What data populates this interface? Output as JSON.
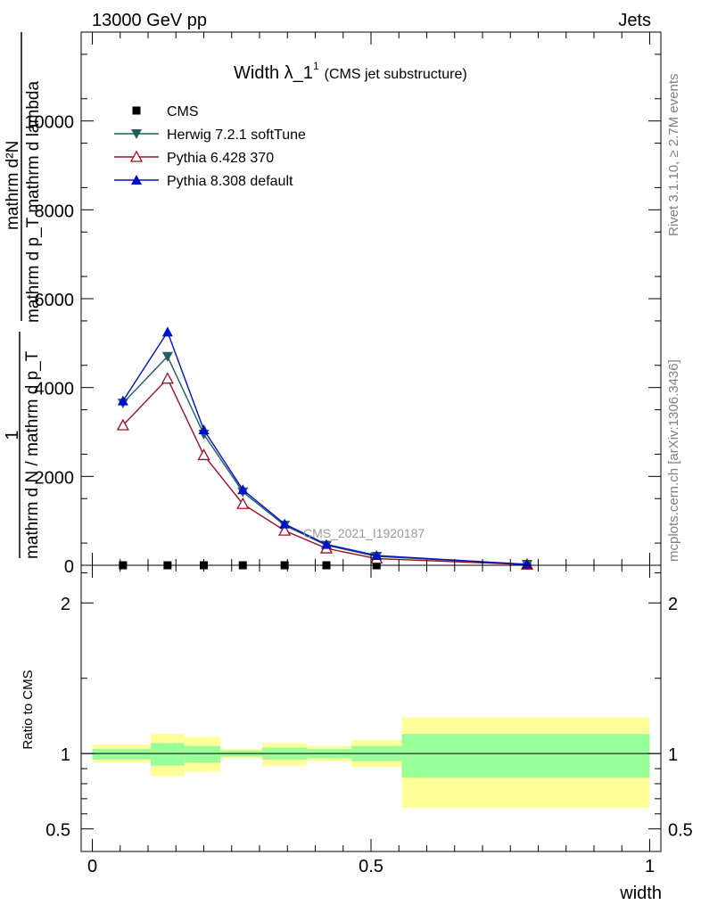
{
  "header": {
    "left": "13000 GeV pp",
    "right": "Jets"
  },
  "side_labels": {
    "rivet": "Rivet 3.1.10, ≥ 2.7M events",
    "mcplots": "mcplots.cern.ch [arXiv:1306.3436]"
  },
  "chart_data": [
    {
      "type": "line",
      "title": "Width λ_1",
      "title_sup": "1",
      "title_suffix": "(CMS jet substructure)",
      "ylabel_numerator": "mathrm d²N",
      "ylabel_denominator": "mathrm d p_T mathrm d lambda",
      "ylabel_prefix_numerator": "1",
      "ylabel_prefix_denominator": "mathrm d N / mathrm d p_T",
      "watermark": "CMS_2021_I1920187",
      "ylim": [
        0,
        12000
      ],
      "xlim": [
        -0.02,
        1.02
      ],
      "y_ticks": [
        0,
        2000,
        4000,
        6000,
        8000,
        10000
      ],
      "y_tick_labels": [
        "0",
        "2000",
        "4000",
        "6000",
        "8000",
        "10000"
      ],
      "legend_position": "top-left",
      "series": [
        {
          "name": "CMS",
          "color": "#000000",
          "marker": "square",
          "x": [
            0.055,
            0.135,
            0.2,
            0.27,
            0.345,
            0.42,
            0.51,
            0.78
          ],
          "y": [
            0,
            0,
            0,
            0,
            0,
            0,
            0,
            0
          ]
        },
        {
          "name": "Herwig 7.2.1 softTune",
          "color": "#1f5f5f",
          "marker": "triangle-down",
          "x": [
            0.055,
            0.135,
            0.2,
            0.27,
            0.345,
            0.42,
            0.51,
            0.78
          ],
          "y": [
            3650,
            4700,
            2950,
            1650,
            900,
            450,
            200,
            20
          ]
        },
        {
          "name": "Pythia 6.428 370",
          "color": "#9b1020",
          "marker": "triangle-up-open",
          "x": [
            0.055,
            0.135,
            0.2,
            0.27,
            0.345,
            0.42,
            0.51,
            0.78
          ],
          "y": [
            3150,
            4200,
            2480,
            1380,
            780,
            380,
            150,
            15
          ]
        },
        {
          "name": "Pythia 8.308 default",
          "color": "#0010c8",
          "marker": "triangle-up",
          "x": [
            0.055,
            0.135,
            0.2,
            0.27,
            0.345,
            0.42,
            0.51,
            0.78
          ],
          "y": [
            3700,
            5250,
            3050,
            1700,
            930,
            470,
            220,
            20
          ]
        }
      ]
    },
    {
      "type": "area",
      "ylabel": "Ratio to CMS",
      "xlabel": "width",
      "ylim": [
        0.35,
        2.25
      ],
      "xlim": [
        -0.02,
        1.02
      ],
      "y_ticks": [
        0.5,
        1,
        2
      ],
      "y_tick_labels": [
        "0.5",
        "1",
        "2"
      ],
      "x_ticks": [
        0,
        0.5,
        1
      ],
      "x_tick_labels": [
        "0",
        "0.5",
        "1"
      ],
      "reference": 1,
      "band_colors": {
        "outer": "#ffff99",
        "inner": "#99ff99"
      },
      "bins": [
        {
          "x_low": 0.0,
          "x_high": 0.105,
          "outer": [
            0.94,
            1.06
          ],
          "inner": [
            0.96,
            1.03
          ]
        },
        {
          "x_low": 0.105,
          "x_high": 0.165,
          "outer": [
            0.85,
            1.13
          ],
          "inner": [
            0.92,
            1.07
          ]
        },
        {
          "x_low": 0.165,
          "x_high": 0.23,
          "outer": [
            0.88,
            1.11
          ],
          "inner": [
            0.94,
            1.05
          ]
        },
        {
          "x_low": 0.23,
          "x_high": 0.305,
          "outer": [
            0.97,
            1.03
          ],
          "inner": [
            0.98,
            1.02
          ]
        },
        {
          "x_low": 0.305,
          "x_high": 0.385,
          "outer": [
            0.92,
            1.07
          ],
          "inner": [
            0.96,
            1.04
          ]
        },
        {
          "x_low": 0.385,
          "x_high": 0.465,
          "outer": [
            0.95,
            1.05
          ],
          "inner": [
            0.97,
            1.03
          ]
        },
        {
          "x_low": 0.465,
          "x_high": 0.555,
          "outer": [
            0.91,
            1.09
          ],
          "inner": [
            0.95,
            1.05
          ]
        },
        {
          "x_low": 0.555,
          "x_high": 1.0,
          "outer": [
            0.64,
            1.24
          ],
          "inner": [
            0.84,
            1.13
          ]
        }
      ]
    }
  ]
}
